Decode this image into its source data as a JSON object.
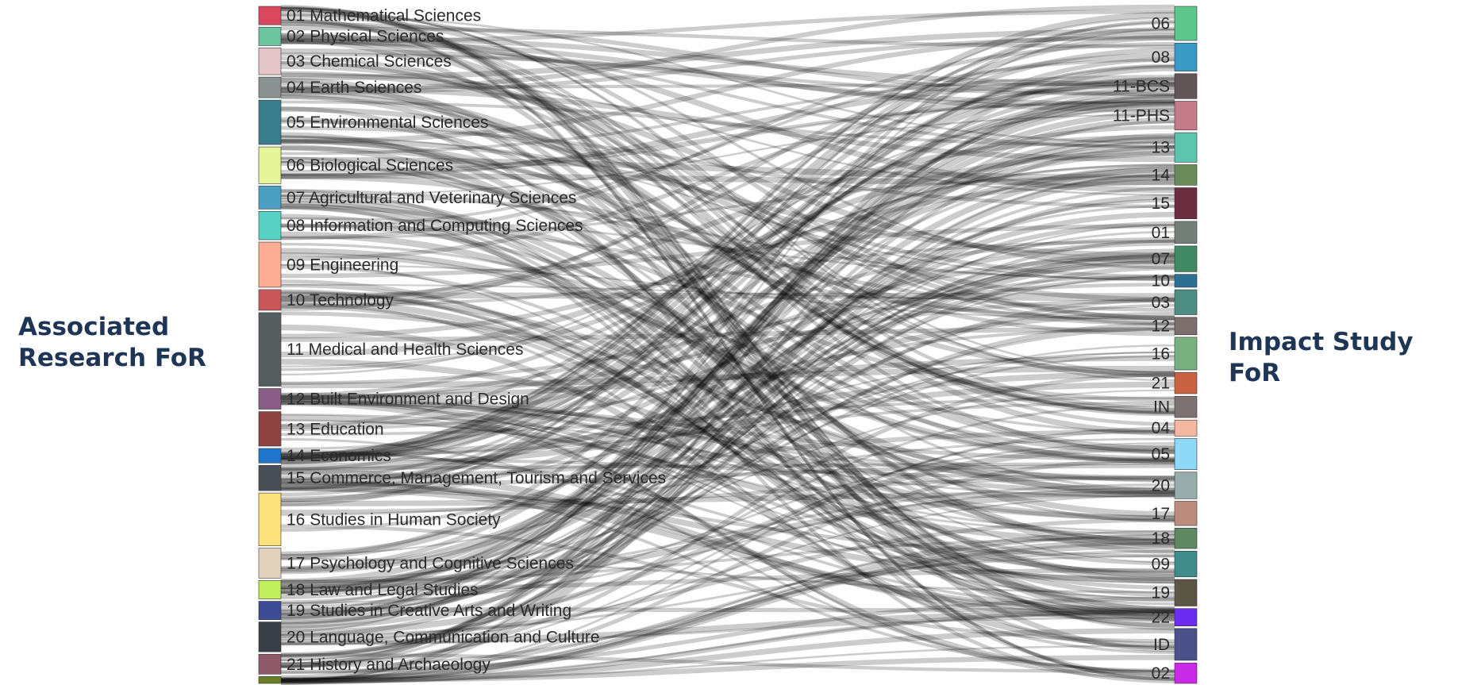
{
  "left_title": {
    "line1": "Associated",
    "line2": "Research FoR"
  },
  "right_title": "Impact Study FoR",
  "link_color": "#000000",
  "left_nodes": [
    {
      "label": "01 Mathematical Sciences",
      "color": "#d9485f",
      "share": 2.4
    },
    {
      "label": "02 Physical Sciences",
      "color": "#6cc4a1",
      "share": 2.4
    },
    {
      "label": "03 Chemical Sciences",
      "color": "#e5c5c8",
      "share": 3.5
    },
    {
      "label": "04 Earth Sciences",
      "color": "#8a9190",
      "share": 2.7
    },
    {
      "label": "05 Environmental Sciences",
      "color": "#3a7d8c",
      "share": 5.8
    },
    {
      "label": "06 Biological Sciences",
      "color": "#e6f59a",
      "share": 4.8
    },
    {
      "label": "07 Agricultural and Veterinary Sciences",
      "color": "#4a9fc3",
      "share": 3.0
    },
    {
      "label": "08 Information and Computing Sciences",
      "color": "#58d2c4",
      "share": 3.7
    },
    {
      "label": "09 Engineering",
      "color": "#fbae93",
      "share": 5.9
    },
    {
      "label": "10 Technology",
      "color": "#c9575a",
      "share": 2.7
    },
    {
      "label": "11 Medical and Health Sciences",
      "color": "#565d5e",
      "share": 9.6
    },
    {
      "label": "12 Built Environment and Design",
      "color": "#8a5d86",
      "share": 2.7
    },
    {
      "label": "13 Education",
      "color": "#8e4242",
      "share": 4.5
    },
    {
      "label": "14 Economics",
      "color": "#1f75c9",
      "share": 1.9
    },
    {
      "label": "15 Commerce, Management, Tourism and Services",
      "color": "#4a4e57",
      "share": 3.3
    },
    {
      "label": "16 Studies in Human Society",
      "color": "#fde17a",
      "share": 6.9
    },
    {
      "label": "17 Psychology and Cognitive Sciences",
      "color": "#e2d2be",
      "share": 3.9
    },
    {
      "label": "18 Law and Legal Studies",
      "color": "#c2ef5c",
      "share": 2.4
    },
    {
      "label": "19 Studies in Creative Arts and Writing",
      "color": "#3e4c96",
      "share": 2.4
    },
    {
      "label": "20 Language, Communication and Culture",
      "color": "#3a3f47",
      "share": 3.9
    },
    {
      "label": "21 History and Archaeology",
      "color": "#8f5a6a",
      "share": 2.6
    },
    {
      "label": "",
      "color": "#6b7f27",
      "share": 0.9
    }
  ],
  "right_nodes": [
    {
      "label": "06",
      "color": "#5cc68c",
      "share": 4.5
    },
    {
      "label": "08",
      "color": "#3a9ac3",
      "share": 3.7
    },
    {
      "label": "11-BCS",
      "color": "#615557",
      "share": 3.3
    },
    {
      "label": "11-PHS",
      "color": "#c47b8a",
      "share": 3.8
    },
    {
      "label": "13",
      "color": "#5ec4ad",
      "share": 3.9
    },
    {
      "label": "14",
      "color": "#6c8b5a",
      "share": 2.7
    },
    {
      "label": "15",
      "color": "#6b2d3f",
      "share": 4.1
    },
    {
      "label": "01",
      "color": "#748077",
      "share": 2.9
    },
    {
      "label": "07",
      "color": "#3f8a64",
      "share": 3.4
    },
    {
      "label": "10",
      "color": "#2d6e93",
      "share": 1.7
    },
    {
      "label": "03",
      "color": "#4e8d82",
      "share": 3.3
    },
    {
      "label": "12",
      "color": "#7d6e6e",
      "share": 2.3
    },
    {
      "label": "16",
      "color": "#78b07f",
      "share": 4.3
    },
    {
      "label": "21",
      "color": "#c86243",
      "share": 2.8
    },
    {
      "label": "IN",
      "color": "#7d7272",
      "share": 2.8
    },
    {
      "label": "04",
      "color": "#f4b8a2",
      "share": 2.1
    },
    {
      "label": "05",
      "color": "#8fd9f6",
      "share": 4.1
    },
    {
      "label": "20",
      "color": "#99acac",
      "share": 3.5
    },
    {
      "label": "17",
      "color": "#bb8b7c",
      "share": 3.2
    },
    {
      "label": "18",
      "color": "#5e8762",
      "share": 2.7
    },
    {
      "label": "09",
      "color": "#3f8c8b",
      "share": 3.4
    },
    {
      "label": "19",
      "color": "#5b5545",
      "share": 3.5
    },
    {
      "label": "22",
      "color": "#6b2bf0",
      "share": 2.3
    },
    {
      "label": "ID",
      "color": "#4b5088",
      "share": 4.2
    },
    {
      "label": "02",
      "color": "#c82ae6",
      "share": 2.7
    }
  ]
}
